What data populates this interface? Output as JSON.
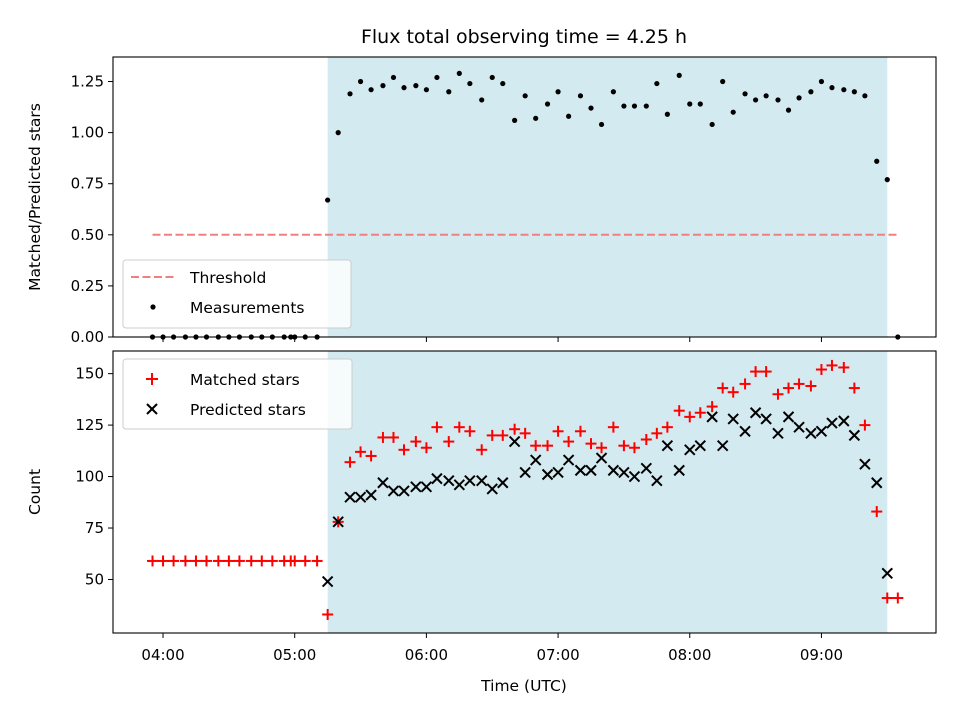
{
  "chart_data": {
    "title": "Flux total observing time = 4.25 h",
    "xlabel": "Time (UTC)",
    "xlim_hours": [
      3.62,
      9.87
    ],
    "x_ticks": [
      {
        "label": "04:00",
        "hour": 4
      },
      {
        "label": "05:00",
        "hour": 5
      },
      {
        "label": "06:00",
        "hour": 6
      },
      {
        "label": "07:00",
        "hour": 7
      },
      {
        "label": "08:00",
        "hour": 8
      },
      {
        "label": "09:00",
        "hour": 9
      }
    ],
    "observing_window": {
      "start_hour": 5.25,
      "end_hour": 9.5,
      "color": "#d3eaf0"
    },
    "panels": [
      {
        "type": "scatter",
        "ylabel": "Matched/Predicted stars",
        "ylim": [
          0,
          1.37
        ],
        "y_ticks": [
          {
            "label": "0.00",
            "value": 0
          },
          {
            "label": "0.25",
            "value": 0.25
          },
          {
            "label": "0.50",
            "value": 0.5
          },
          {
            "label": "0.75",
            "value": 0.75
          },
          {
            "label": "1.00",
            "value": 1.0
          },
          {
            "label": "1.25",
            "value": 1.25
          }
        ],
        "threshold": {
          "name": "Threshold",
          "value": 0.5,
          "x_range": [
            3.92,
            9.58
          ],
          "color": "#f08080"
        },
        "series": [
          {
            "name": "Measurements",
            "marker": "dot",
            "color": "#000000",
            "x": [
              3.92,
              4.0,
              4.08,
              4.17,
              4.25,
              4.33,
              4.42,
              4.5,
              4.58,
              4.67,
              4.75,
              4.83,
              4.92,
              4.97,
              5.0,
              5.08,
              5.17,
              5.25,
              5.33,
              5.42,
              5.5,
              5.58,
              5.67,
              5.75,
              5.83,
              5.92,
              6.0,
              6.08,
              6.17,
              6.25,
              6.33,
              6.42,
              6.5,
              6.58,
              6.67,
              6.75,
              6.83,
              6.92,
              7.0,
              7.08,
              7.17,
              7.25,
              7.33,
              7.42,
              7.5,
              7.58,
              7.67,
              7.75,
              7.83,
              7.92,
              8.0,
              8.08,
              8.17,
              8.25,
              8.33,
              8.42,
              8.5,
              8.58,
              8.67,
              8.75,
              8.83,
              8.92,
              9.0,
              9.08,
              9.17,
              9.25,
              9.33,
              9.42,
              9.5,
              9.58
            ],
            "y": [
              0,
              0,
              0,
              0,
              0,
              0,
              0,
              0,
              0,
              0,
              0,
              0,
              0,
              0,
              0,
              0,
              0,
              0.67,
              1.0,
              1.19,
              1.25,
              1.21,
              1.23,
              1.27,
              1.22,
              1.23,
              1.21,
              1.27,
              1.2,
              1.29,
              1.24,
              1.16,
              1.27,
              1.24,
              1.06,
              1.18,
              1.07,
              1.14,
              1.2,
              1.08,
              1.18,
              1.12,
              1.04,
              1.2,
              1.13,
              1.13,
              1.13,
              1.24,
              1.09,
              1.28,
              1.14,
              1.14,
              1.04,
              1.25,
              1.1,
              1.19,
              1.16,
              1.18,
              1.16,
              1.11,
              1.17,
              1.2,
              1.25,
              1.22,
              1.21,
              1.2,
              1.18,
              0.86,
              0.77,
              0
            ]
          }
        ],
        "legend": {
          "position": "lower-left",
          "entries": [
            "Threshold",
            "Measurements"
          ]
        }
      },
      {
        "type": "scatter",
        "ylabel": "Count",
        "ylim": [
          24,
          161
        ],
        "y_ticks": [
          {
            "label": "50",
            "value": 50
          },
          {
            "label": "75",
            "value": 75
          },
          {
            "label": "100",
            "value": 100
          },
          {
            "label": "125",
            "value": 125
          },
          {
            "label": "150",
            "value": 150
          }
        ],
        "series": [
          {
            "name": "Matched stars",
            "marker": "plus",
            "color": "#ff0000",
            "x": [
              3.92,
              4.0,
              4.08,
              4.17,
              4.25,
              4.33,
              4.42,
              4.5,
              4.58,
              4.67,
              4.75,
              4.83,
              4.92,
              4.97,
              5.0,
              5.08,
              5.17,
              5.25,
              5.33,
              5.42,
              5.5,
              5.58,
              5.67,
              5.75,
              5.83,
              5.92,
              6.0,
              6.08,
              6.17,
              6.25,
              6.33,
              6.42,
              6.5,
              6.58,
              6.67,
              6.75,
              6.83,
              6.92,
              7.0,
              7.08,
              7.17,
              7.25,
              7.33,
              7.42,
              7.5,
              7.58,
              7.67,
              7.75,
              7.83,
              7.92,
              8.0,
              8.08,
              8.17,
              8.25,
              8.33,
              8.42,
              8.5,
              8.58,
              8.67,
              8.75,
              8.83,
              8.92,
              9.0,
              9.08,
              9.17,
              9.25,
              9.33,
              9.42,
              9.5,
              9.58
            ],
            "y": [
              59,
              59,
              59,
              59,
              59,
              59,
              59,
              59,
              59,
              59,
              59,
              59,
              59,
              59,
              59,
              59,
              59,
              33,
              78,
              107,
              112,
              110,
              119,
              119,
              113,
              117,
              114,
              124,
              117,
              124,
              122,
              113,
              120,
              120,
              123,
              121,
              115,
              115,
              122,
              117,
              122,
              116,
              114,
              124,
              115,
              114,
              118,
              121,
              124,
              132,
              129,
              131,
              134,
              143,
              141,
              145,
              151,
              151,
              140,
              143,
              145,
              144,
              152,
              154,
              153,
              143,
              125,
              83,
              41,
              41
            ]
          },
          {
            "name": "Predicted stars",
            "marker": "x",
            "color": "#000000",
            "x": [
              5.25,
              5.33,
              5.42,
              5.5,
              5.58,
              5.67,
              5.75,
              5.83,
              5.92,
              6.0,
              6.08,
              6.17,
              6.25,
              6.33,
              6.42,
              6.5,
              6.58,
              6.67,
              6.75,
              6.83,
              6.92,
              7.0,
              7.08,
              7.17,
              7.25,
              7.33,
              7.42,
              7.5,
              7.58,
              7.67,
              7.75,
              7.83,
              7.92,
              8.0,
              8.08,
              8.17,
              8.25,
              8.33,
              8.42,
              8.5,
              8.58,
              8.67,
              8.75,
              8.83,
              8.92,
              9.0,
              9.08,
              9.17,
              9.25,
              9.33,
              9.42,
              9.5
            ],
            "y": [
              49,
              78,
              90,
              90,
              91,
              97,
              93,
              93,
              95,
              95,
              99,
              98,
              96,
              98,
              98,
              94,
              97,
              117,
              102,
              108,
              101,
              102,
              108,
              103,
              103,
              109,
              103,
              102,
              100,
              104,
              98,
              115,
              103,
              113,
              115,
              129,
              115,
              128,
              122,
              131,
              128,
              121,
              129,
              124,
              121,
              122,
              126,
              127,
              120,
              106,
              97,
              53
            ]
          }
        ],
        "legend": {
          "position": "top-left",
          "entries": [
            "Matched stars",
            "Predicted stars"
          ]
        }
      }
    ]
  }
}
